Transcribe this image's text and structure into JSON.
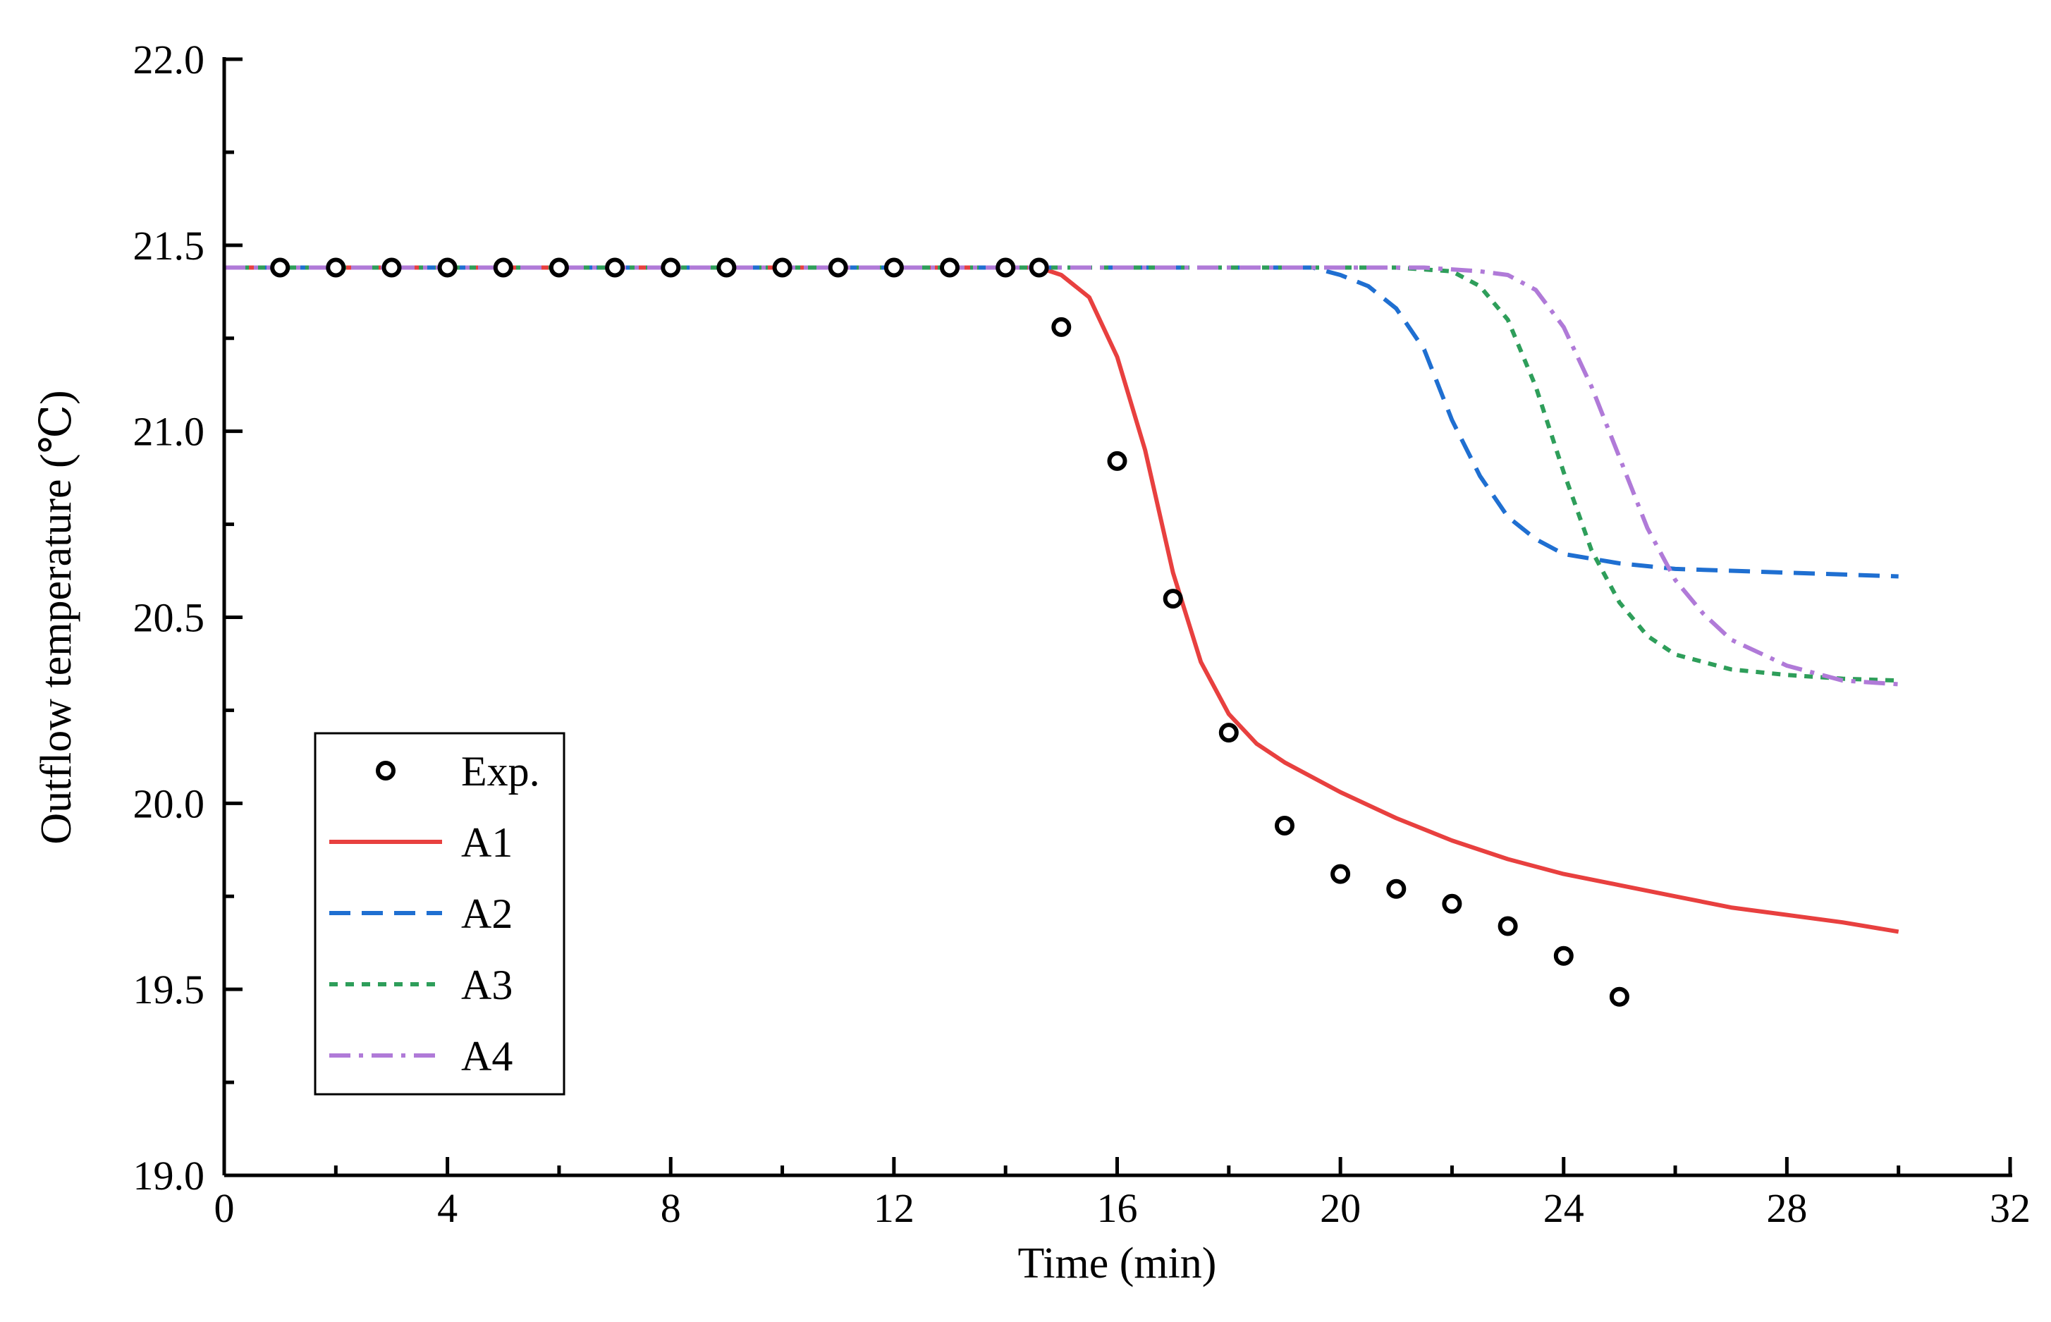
{
  "chart_data": {
    "type": "line",
    "title": "",
    "xlabel": "Time (min)",
    "ylabel": "Outflow temperature (℃)",
    "xlim": [
      0,
      32
    ],
    "ylim": [
      19.0,
      22.0
    ],
    "x_ticks": [
      0,
      4,
      8,
      12,
      16,
      20,
      24,
      28,
      32
    ],
    "x_tick_labels": [
      "0",
      "4",
      "8",
      "12",
      "16",
      "20",
      "24",
      "28",
      "32"
    ],
    "y_ticks": [
      19.0,
      19.5,
      20.0,
      20.5,
      21.0,
      21.5,
      22.0
    ],
    "y_tick_labels": [
      "19.0",
      "19.5",
      "20.0",
      "20.5",
      "21.0",
      "21.5",
      "22.0"
    ],
    "grid": false,
    "legend_position": "lower-left",
    "series": [
      {
        "name": "Exp.",
        "kind": "markers",
        "color": "#000000",
        "points": [
          [
            1,
            21.44
          ],
          [
            2,
            21.44
          ],
          [
            3,
            21.44
          ],
          [
            4,
            21.44
          ],
          [
            5,
            21.44
          ],
          [
            6,
            21.44
          ],
          [
            7,
            21.44
          ],
          [
            8,
            21.44
          ],
          [
            9,
            21.44
          ],
          [
            10,
            21.44
          ],
          [
            11,
            21.44
          ],
          [
            12,
            21.44
          ],
          [
            13,
            21.44
          ],
          [
            14,
            21.44
          ],
          [
            14.6,
            21.44
          ],
          [
            15,
            21.28
          ],
          [
            16,
            20.92
          ],
          [
            17,
            20.55
          ],
          [
            18,
            20.19
          ],
          [
            19,
            19.94
          ],
          [
            20,
            19.81
          ],
          [
            21,
            19.77
          ],
          [
            22,
            19.73
          ],
          [
            23,
            19.67
          ],
          [
            24,
            19.59
          ],
          [
            25,
            19.48
          ]
        ]
      },
      {
        "name": "A1",
        "kind": "line",
        "style": "solid",
        "color": "#e8403f",
        "points": [
          [
            0,
            21.44
          ],
          [
            14.6,
            21.44
          ],
          [
            15,
            21.42
          ],
          [
            15.5,
            21.36
          ],
          [
            16,
            21.2
          ],
          [
            16.5,
            20.95
          ],
          [
            17,
            20.62
          ],
          [
            17.5,
            20.38
          ],
          [
            18,
            20.24
          ],
          [
            18.5,
            20.16
          ],
          [
            19,
            20.11
          ],
          [
            20,
            20.03
          ],
          [
            21,
            19.96
          ],
          [
            22,
            19.9
          ],
          [
            23,
            19.85
          ],
          [
            24,
            19.81
          ],
          [
            25,
            19.78
          ],
          [
            26,
            19.75
          ],
          [
            27,
            19.72
          ],
          [
            28,
            19.7
          ],
          [
            29,
            19.68
          ],
          [
            30,
            19.655
          ]
        ]
      },
      {
        "name": "A2",
        "kind": "line",
        "style": "dashed",
        "color": "#1f6fd1",
        "points": [
          [
            0,
            21.44
          ],
          [
            19.5,
            21.44
          ],
          [
            20,
            21.42
          ],
          [
            20.5,
            21.39
          ],
          [
            21,
            21.33
          ],
          [
            21.5,
            21.22
          ],
          [
            22,
            21.03
          ],
          [
            22.5,
            20.88
          ],
          [
            23,
            20.77
          ],
          [
            23.5,
            20.71
          ],
          [
            24,
            20.67
          ],
          [
            25,
            20.645
          ],
          [
            26,
            20.63
          ],
          [
            27,
            20.625
          ],
          [
            28,
            20.62
          ],
          [
            29,
            20.615
          ],
          [
            30,
            20.61
          ]
        ]
      },
      {
        "name": "A3",
        "kind": "line",
        "style": "dotted",
        "color": "#2e9e5a",
        "points": [
          [
            0,
            21.44
          ],
          [
            21,
            21.44
          ],
          [
            22,
            21.43
          ],
          [
            22.5,
            21.39
          ],
          [
            23,
            21.3
          ],
          [
            23.5,
            21.12
          ],
          [
            24,
            20.89
          ],
          [
            24.5,
            20.68
          ],
          [
            25,
            20.54
          ],
          [
            25.5,
            20.45
          ],
          [
            26,
            20.4
          ],
          [
            27,
            20.36
          ],
          [
            28,
            20.345
          ],
          [
            29,
            20.335
          ],
          [
            30,
            20.33
          ]
        ]
      },
      {
        "name": "A4",
        "kind": "line",
        "style": "dashdot",
        "color": "#b07ad8",
        "points": [
          [
            0,
            21.44
          ],
          [
            21.5,
            21.44
          ],
          [
            22.5,
            21.43
          ],
          [
            23,
            21.42
          ],
          [
            23.5,
            21.38
          ],
          [
            24,
            21.28
          ],
          [
            24.5,
            21.12
          ],
          [
            25,
            20.93
          ],
          [
            25.5,
            20.74
          ],
          [
            26,
            20.6
          ],
          [
            26.5,
            20.51
          ],
          [
            27,
            20.44
          ],
          [
            28,
            20.37
          ],
          [
            29,
            20.33
          ],
          [
            30,
            20.32
          ]
        ]
      }
    ]
  }
}
